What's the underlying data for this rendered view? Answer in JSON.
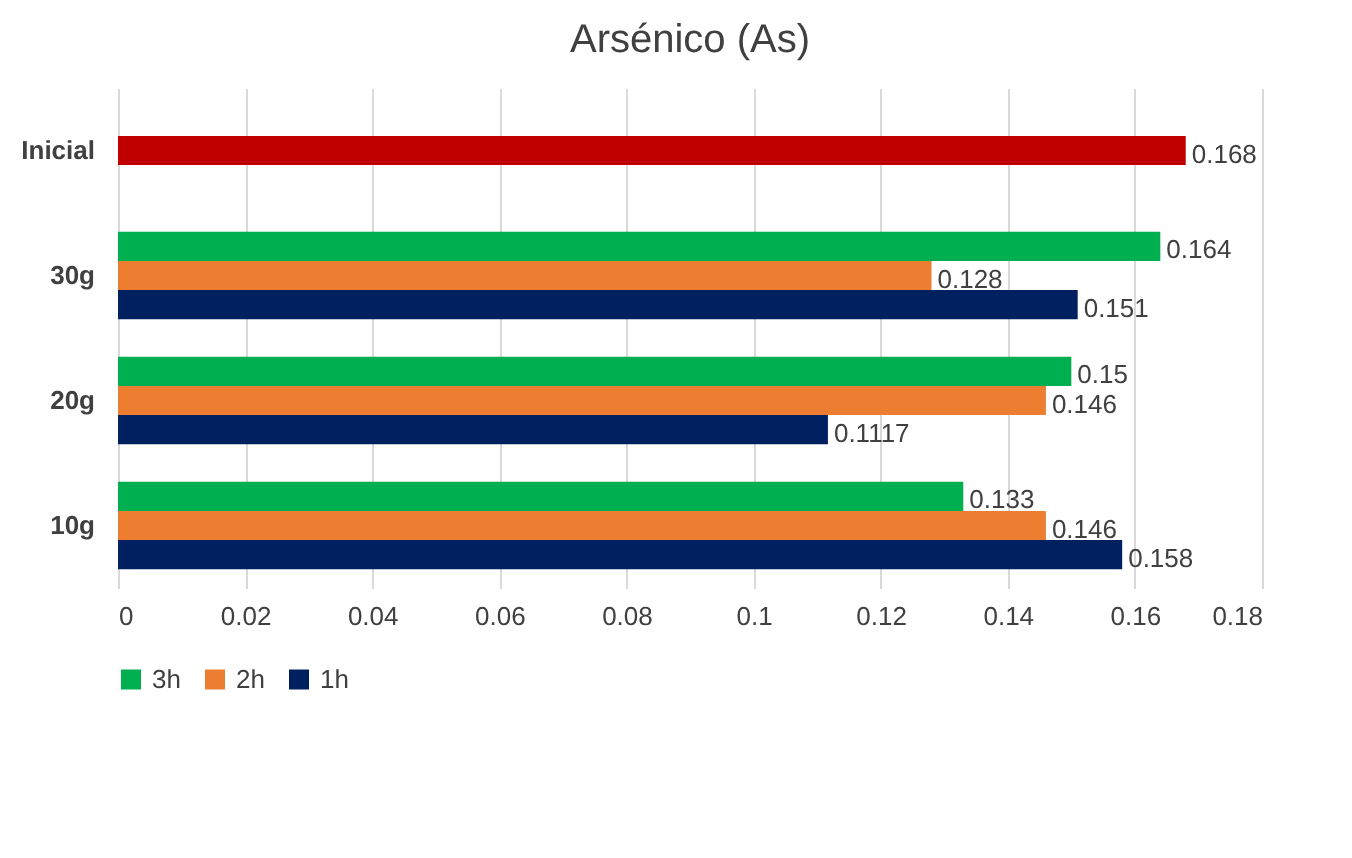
{
  "chart_data": {
    "type": "bar",
    "orientation": "horizontal",
    "title": "Arsénico (As)",
    "categories": [
      "Inicial",
      "30g",
      "20g",
      "10g"
    ],
    "series": [
      {
        "name": "3h",
        "color": "#00b050",
        "values": [
          null,
          0.164,
          0.15,
          0.133
        ]
      },
      {
        "name": "2h",
        "color": "#ed7d31",
        "colors": [
          "#c00000",
          "#ed7d31",
          "#ed7d31",
          "#ed7d31"
        ],
        "values": [
          0.168,
          0.128,
          0.146,
          0.146
        ]
      },
      {
        "name": "1h",
        "color": "#002060",
        "values": [
          null,
          0.151,
          0.1117,
          0.158
        ]
      }
    ],
    "xlim": [
      0,
      0.18
    ],
    "xticks": [
      0,
      0.02,
      0.04,
      0.06,
      0.08,
      0.1,
      0.12,
      0.14,
      0.16,
      0.18
    ],
    "grid": "x",
    "legend": "bottom",
    "data_labels": true
  }
}
